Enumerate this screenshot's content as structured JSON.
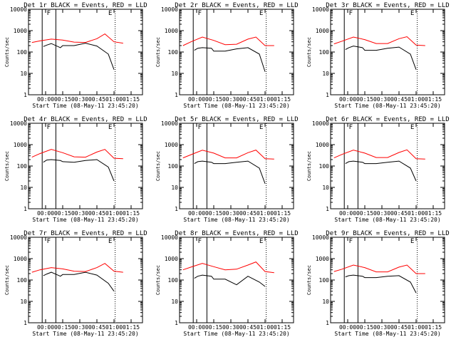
{
  "chart_data": [
    {
      "type": "line",
      "title": "Det 1r BLACK = Events, RED = LLD",
      "xlabel": "Start Time (08-May-11 23:45:20)",
      "ylabel": "Counts/sec",
      "yscale": "log",
      "ylim": [
        1,
        10000
      ],
      "x_ticks": [
        "00:00",
        "00:15",
        "00:30",
        "00:45",
        "01:00",
        "01:15"
      ],
      "y_ticks": [
        "1",
        "10",
        "100",
        "1000",
        "10000"
      ],
      "grid": "off",
      "legend": "none",
      "markers": [
        "F",
        "E"
      ],
      "series": [
        {
          "color": "#ff0000",
          "x": [
            -12,
            -5,
            5,
            15,
            25,
            35,
            45,
            52,
            60,
            68
          ],
          "y": [
            280,
            330,
            400,
            360,
            290,
            280,
            420,
            700,
            300,
            260
          ]
        },
        {
          "color": "#000000",
          "x": [
            -2,
            1,
            5,
            13,
            15,
            25,
            35,
            45,
            55,
            60
          ],
          "y": [
            180,
            210,
            250,
            160,
            200,
            200,
            260,
            190,
            80,
            15
          ]
        }
      ]
    },
    {
      "type": "line",
      "title": "Det 2r BLACK = Events, RED = LLD",
      "xlabel": "Start Time (08-May-11 23:45:20)",
      "ylabel": "Counts/sec",
      "yscale": "log",
      "ylim": [
        1,
        10000
      ],
      "x_ticks": [
        "00:00",
        "00:15",
        "00:30",
        "00:45",
        "01:00",
        "01:15"
      ],
      "y_ticks": [
        "1",
        "10",
        "100",
        "1000",
        "10000"
      ],
      "grid": "off",
      "legend": "none",
      "markers": [
        "F",
        "E"
      ],
      "series": [
        {
          "color": "#ff0000",
          "x": [
            -12,
            -5,
            5,
            15,
            25,
            35,
            45,
            52,
            60,
            68
          ],
          "y": [
            200,
            300,
            500,
            350,
            220,
            230,
            400,
            500,
            200,
            200
          ]
        },
        {
          "color": "#000000",
          "x": [
            -2,
            1,
            5,
            13,
            15,
            25,
            35,
            45,
            55,
            60
          ],
          "y": [
            120,
            150,
            160,
            150,
            110,
            110,
            140,
            160,
            80,
            12
          ]
        }
      ]
    },
    {
      "type": "line",
      "title": "Det 3r BLACK = Events, RED = LLD",
      "xlabel": "Start Time (08-May-11 23:45:20)",
      "ylabel": "Counts/sec",
      "yscale": "log",
      "ylim": [
        1,
        10000
      ],
      "x_ticks": [
        "00:00",
        "00:15",
        "00:30",
        "00:45",
        "01:00",
        "01:15"
      ],
      "y_ticks": [
        "1",
        "10",
        "100",
        "1000",
        "10000"
      ],
      "grid": "off",
      "legend": "none",
      "markers": [
        "F",
        "E"
      ],
      "series": [
        {
          "color": "#ff0000",
          "x": [
            -12,
            -5,
            5,
            15,
            25,
            35,
            45,
            52,
            60,
            68
          ],
          "y": [
            240,
            320,
            500,
            380,
            250,
            250,
            420,
            520,
            210,
            200
          ]
        },
        {
          "color": "#000000",
          "x": [
            -2,
            1,
            5,
            13,
            15,
            25,
            35,
            45,
            55,
            60
          ],
          "y": [
            130,
            160,
            190,
            160,
            120,
            120,
            150,
            170,
            80,
            15
          ]
        }
      ]
    },
    {
      "type": "line",
      "title": "Det 4r BLACK = Events, RED = LLD",
      "xlabel": "Start Time (08-May-11 23:45:20)",
      "ylabel": "Counts/sec",
      "yscale": "log",
      "ylim": [
        1,
        10000
      ],
      "x_ticks": [
        "00:00",
        "00:15",
        "00:30",
        "00:45",
        "01:00",
        "01:15"
      ],
      "y_ticks": [
        "1",
        "10",
        "100",
        "1000",
        "10000"
      ],
      "grid": "off",
      "legend": "none",
      "markers": [
        "F",
        "E"
      ],
      "series": [
        {
          "color": "#ff0000",
          "x": [
            -12,
            -5,
            5,
            15,
            25,
            35,
            45,
            52,
            60,
            68
          ],
          "y": [
            260,
            380,
            600,
            420,
            270,
            260,
            450,
            600,
            230,
            220
          ]
        },
        {
          "color": "#000000",
          "x": [
            -2,
            1,
            5,
            13,
            15,
            25,
            35,
            45,
            55,
            60
          ],
          "y": [
            150,
            190,
            200,
            180,
            160,
            150,
            180,
            200,
            90,
            20
          ]
        }
      ]
    },
    {
      "type": "line",
      "title": "Det 5r BLACK = Events, RED = LLD",
      "xlabel": "Start Time (08-May-11 23:45:20)",
      "ylabel": "Counts/sec",
      "yscale": "log",
      "ylim": [
        1,
        10000
      ],
      "x_ticks": [
        "00:00",
        "00:15",
        "00:30",
        "00:45",
        "01:00",
        "01:15"
      ],
      "y_ticks": [
        "1",
        "10",
        "100",
        "1000",
        "10000"
      ],
      "grid": "off",
      "legend": "none",
      "markers": [
        "F",
        "E"
      ],
      "series": [
        {
          "color": "#ff0000",
          "x": [
            -12,
            -5,
            5,
            15,
            25,
            35,
            45,
            52,
            60,
            68
          ],
          "y": [
            240,
            340,
            550,
            400,
            240,
            240,
            420,
            560,
            220,
            210
          ]
        },
        {
          "color": "#000000",
          "x": [
            -2,
            1,
            5,
            13,
            15,
            25,
            35,
            45,
            55,
            60
          ],
          "y": [
            130,
            160,
            170,
            150,
            130,
            130,
            150,
            170,
            80,
            15
          ]
        }
      ]
    },
    {
      "type": "line",
      "title": "Det 6r BLACK = Events, RED = LLD",
      "xlabel": "Start Time (08-May-11 23:45:20)",
      "ylabel": "Counts/sec",
      "yscale": "log",
      "ylim": [
        1,
        10000
      ],
      "x_ticks": [
        "00:00",
        "00:15",
        "00:30",
        "00:45",
        "01:00",
        "01:15"
      ],
      "y_ticks": [
        "1",
        "10",
        "100",
        "1000",
        "10000"
      ],
      "grid": "off",
      "legend": "none",
      "markers": [
        "F",
        "E"
      ],
      "series": [
        {
          "color": "#ff0000",
          "x": [
            -12,
            -5,
            5,
            15,
            25,
            35,
            45,
            52,
            60,
            68
          ],
          "y": [
            240,
            350,
            560,
            400,
            250,
            250,
            430,
            570,
            220,
            210
          ]
        },
        {
          "color": "#000000",
          "x": [
            -2,
            1,
            5,
            13,
            15,
            25,
            35,
            45,
            55,
            60
          ],
          "y": [
            130,
            160,
            170,
            150,
            130,
            130,
            150,
            170,
            80,
            20
          ]
        }
      ]
    },
    {
      "type": "line",
      "title": "Det 7r BLACK = Events, RED = LLD",
      "xlabel": "Start Time (08-May-11 23:45:20)",
      "ylabel": "Counts/sec",
      "yscale": "log",
      "ylim": [
        1,
        10000
      ],
      "x_ticks": [
        "00:00",
        "00:15",
        "00:30",
        "00:45",
        "01:00",
        "01:15"
      ],
      "y_ticks": [
        "1",
        "10",
        "100",
        "1000",
        "10000"
      ],
      "grid": "off",
      "legend": "none",
      "markers": [
        "F",
        "E"
      ],
      "series": [
        {
          "color": "#ff0000",
          "x": [
            -12,
            -5,
            5,
            15,
            25,
            35,
            45,
            52,
            60,
            68
          ],
          "y": [
            230,
            300,
            380,
            330,
            260,
            250,
            380,
            600,
            260,
            230
          ]
        },
        {
          "color": "#000000",
          "x": [
            -2,
            1,
            5,
            13,
            15,
            25,
            35,
            45,
            55,
            60
          ],
          "y": [
            160,
            190,
            230,
            150,
            180,
            180,
            230,
            170,
            70,
            30
          ]
        }
      ]
    },
    {
      "type": "line",
      "title": "Det 8r BLACK = Events, RED = LLD",
      "xlabel": "Start Time (08-May-11 23:45:20)",
      "ylabel": "Counts/sec",
      "yscale": "log",
      "ylim": [
        1,
        10000
      ],
      "x_ticks": [
        "00:00",
        "00:15",
        "00:30",
        "00:45",
        "01:00",
        "01:15"
      ],
      "y_ticks": [
        "1",
        "10",
        "100",
        "1000",
        "10000"
      ],
      "grid": "off",
      "legend": "none",
      "markers": [
        "F",
        "E"
      ],
      "series": [
        {
          "color": "#ff0000",
          "x": [
            -12,
            -5,
            5,
            15,
            25,
            35,
            45,
            52,
            60,
            68
          ],
          "y": [
            300,
            400,
            600,
            420,
            300,
            320,
            500,
            700,
            250,
            220
          ]
        },
        {
          "color": "#000000",
          "x": [
            -2,
            1,
            5,
            13,
            15,
            25,
            35,
            45,
            55,
            60
          ],
          "y": [
            120,
            150,
            170,
            150,
            110,
            110,
            60,
            150,
            80,
            50
          ]
        }
      ]
    },
    {
      "type": "line",
      "title": "Det 9r BLACK = Events, RED = LLD",
      "xlabel": "Start Time (08-May-11 23:45:20)",
      "ylabel": "Counts/sec",
      "yscale": "log",
      "ylim": [
        1,
        10000
      ],
      "x_ticks": [
        "00:00",
        "00:15",
        "00:30",
        "00:45",
        "01:00",
        "01:15"
      ],
      "y_ticks": [
        "1",
        "10",
        "100",
        "1000",
        "10000"
      ],
      "grid": "off",
      "legend": "none",
      "markers": [
        "F",
        "E"
      ],
      "series": [
        {
          "color": "#ff0000",
          "x": [
            -12,
            -5,
            5,
            15,
            25,
            35,
            45,
            52,
            60,
            68
          ],
          "y": [
            250,
            320,
            500,
            380,
            240,
            240,
            400,
            500,
            200,
            200
          ]
        },
        {
          "color": "#000000",
          "x": [
            -2,
            1,
            5,
            13,
            15,
            25,
            35,
            45,
            55,
            60
          ],
          "y": [
            140,
            160,
            170,
            150,
            130,
            130,
            150,
            160,
            80,
            25
          ]
        }
      ]
    }
  ]
}
